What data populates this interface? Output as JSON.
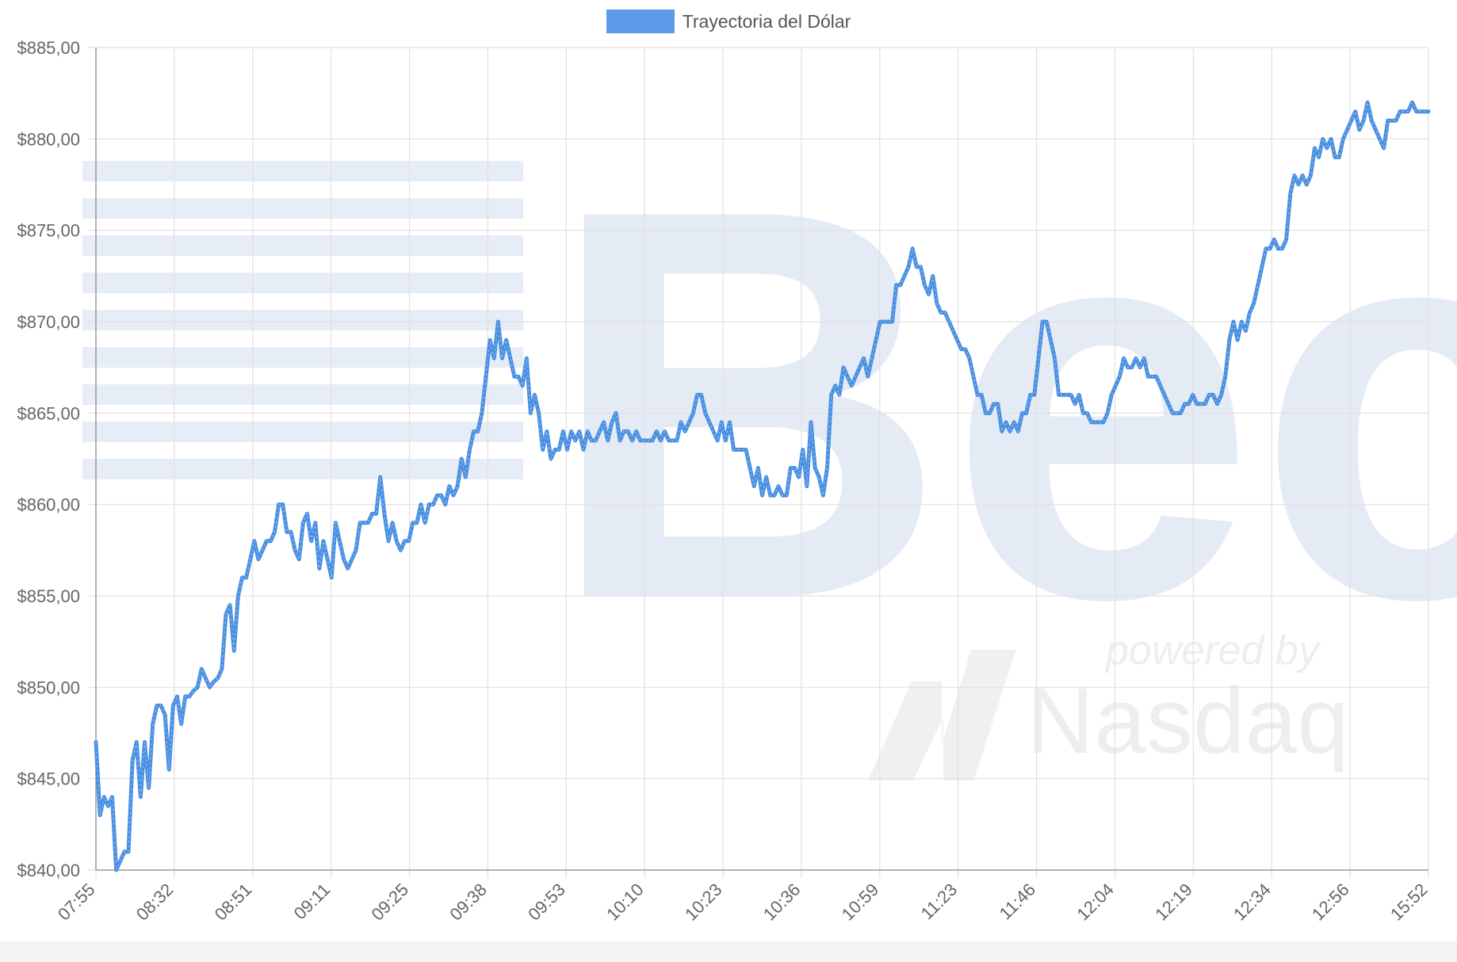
{
  "colors": {
    "series": "#4a90e2",
    "legend_fill": "#5b9be8",
    "grid": "#e0e0e0",
    "axis": "#9a9a9a",
    "tick_text": "#666666",
    "watermark": "#dfe7f3"
  },
  "watermark": {
    "brand": "Bec",
    "powered_by": "powered by",
    "partner": "Nasdaq"
  },
  "chart_data": {
    "type": "line",
    "legend": {
      "label": "Trayectoria del Dólar",
      "position": "top-center"
    },
    "grid": true,
    "yaxis": {
      "min": 840,
      "max": 885,
      "step": 5,
      "tick_labels": [
        "$885,00",
        "$880,00",
        "$875,00",
        "$870,00",
        "$865,00",
        "$860,00",
        "$855,00",
        "$850,00",
        "$845,00",
        "$840,00"
      ]
    },
    "xaxis": {
      "tick_labels": [
        "07:55",
        "08:32",
        "08:51",
        "09:11",
        "09:25",
        "09:38",
        "09:53",
        "10:10",
        "10:23",
        "10:36",
        "10:59",
        "11:23",
        "11:46",
        "12:04",
        "12:19",
        "12:34",
        "12:56",
        "15:52"
      ]
    },
    "series": [
      {
        "name": "Trayectoria del Dólar",
        "values": [
          847,
          843,
          844,
          843.5,
          844,
          840,
          840.5,
          841,
          841,
          846,
          847,
          844,
          847,
          844.5,
          848,
          849,
          849,
          848.5,
          845.5,
          849,
          849.5,
          848,
          849.5,
          849.5,
          849.8,
          850,
          851,
          850.5,
          850,
          850.3,
          850.5,
          851,
          854,
          854.5,
          852,
          855,
          856,
          856,
          857,
          858,
          857,
          857.5,
          858,
          858,
          858.5,
          860,
          860,
          858.5,
          858.5,
          857.5,
          857,
          859,
          859.5,
          858,
          859,
          856.5,
          858,
          857,
          856,
          859,
          858,
          857,
          856.5,
          857,
          857.5,
          859,
          859,
          859,
          859.5,
          859.5,
          861.5,
          859.5,
          858,
          859,
          858,
          857.5,
          858,
          858,
          859,
          859,
          860,
          859,
          860,
          860,
          860.5,
          860.5,
          860,
          861,
          860.5,
          861,
          862.5,
          861.5,
          863,
          864,
          864,
          865,
          867,
          869,
          868,
          870,
          868,
          869,
          868,
          867,
          867,
          866.5,
          868,
          865,
          866,
          865,
          863,
          864,
          862.5,
          863,
          863,
          864,
          863,
          864,
          863.5,
          864,
          863,
          864,
          863.5,
          863.5,
          864,
          864.5,
          863.5,
          864.5,
          865,
          863.5,
          864,
          864,
          863.5,
          864,
          863.5,
          863.5,
          863.5,
          863.5,
          864,
          863.5,
          864,
          863.5,
          863.5,
          863.5,
          864.5,
          864,
          864.5,
          865,
          866,
          866,
          865,
          864.5,
          864,
          863.5,
          864.5,
          863.5,
          864.5,
          863,
          863,
          863,
          863,
          862,
          861,
          862,
          860.5,
          861.5,
          860.5,
          860.5,
          861,
          860.5,
          860.5,
          862,
          862,
          861.5,
          863,
          861,
          864.5,
          862,
          861.5,
          860.5,
          862,
          866,
          866.5,
          866,
          867.5,
          867,
          866.5,
          867,
          867.5,
          868,
          867,
          868,
          869,
          870,
          870,
          870,
          870,
          872,
          872,
          872.5,
          873,
          874,
          873,
          873,
          872,
          871.5,
          872.5,
          871,
          870.5,
          870.5,
          870,
          869.5,
          869,
          868.5,
          868.5,
          868,
          867,
          866,
          866,
          865,
          865,
          865.5,
          865.5,
          864,
          864.5,
          864,
          864.5,
          864,
          865,
          865,
          866,
          866,
          868,
          870,
          870,
          869,
          868,
          866,
          866,
          866,
          866,
          865.5,
          866,
          865,
          865,
          864.5,
          864.5,
          864.5,
          864.5,
          865,
          866,
          866.5,
          867,
          868,
          867.5,
          867.5,
          868,
          867.5,
          868,
          867,
          867,
          867,
          866.5,
          866,
          865.5,
          865,
          865,
          865,
          865.5,
          865.5,
          866,
          865.5,
          865.5,
          865.5,
          866,
          866,
          865.5,
          866,
          867,
          869,
          870,
          869,
          870,
          869.5,
          870.5,
          871,
          872,
          873,
          874,
          874,
          874.5,
          874,
          874,
          874.5,
          877,
          878,
          877.5,
          878,
          877.5,
          878,
          879.5,
          879,
          880,
          879.5,
          880,
          879,
          879,
          880,
          880.5,
          881,
          881.5,
          880.5,
          881,
          882,
          881,
          880.5,
          880,
          879.5,
          881,
          881,
          881,
          881.5,
          881.5,
          881.5,
          882,
          881.5,
          881.5,
          881.5,
          881.5
        ]
      }
    ]
  }
}
